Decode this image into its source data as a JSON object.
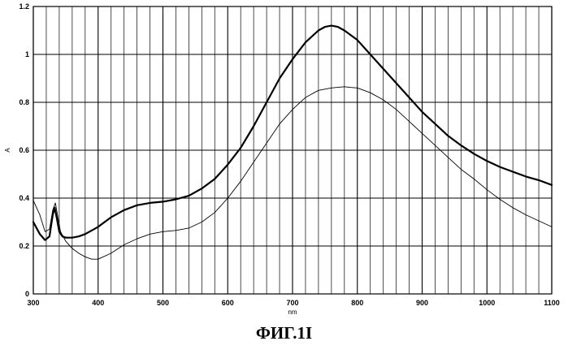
{
  "figure": {
    "caption": "ФИГ.1I"
  },
  "chart_data": {
    "type": "line",
    "xlabel": "nm",
    "ylabel": "A",
    "xlim": [
      300,
      1100
    ],
    "ylim": [
      0,
      1.2
    ],
    "x_ticks": [
      300,
      400,
      500,
      600,
      700,
      800,
      900,
      1000,
      1100
    ],
    "y_ticks": [
      0,
      0.2,
      0.4,
      0.6,
      0.8,
      1,
      1.2
    ],
    "x_tick_labels": [
      "300",
      "400",
      "500",
      "600",
      "700",
      "800",
      "900",
      "1000",
      "1100"
    ],
    "y_tick_labels": [
      "0",
      "0.2",
      "0.4",
      "0.6",
      "0.8",
      "1",
      "1.2"
    ],
    "x_minor_step": 20,
    "grid": true,
    "series": [
      {
        "style": "thick",
        "color": "#000000",
        "x": [
          300,
          310,
          318,
          325,
          330,
          333,
          336,
          340,
          345,
          350,
          360,
          370,
          380,
          400,
          420,
          440,
          460,
          480,
          500,
          520,
          540,
          560,
          580,
          600,
          620,
          640,
          660,
          680,
          700,
          720,
          740,
          750,
          760,
          770,
          780,
          800,
          820,
          840,
          860,
          880,
          900,
          920,
          940,
          960,
          980,
          1000,
          1020,
          1040,
          1060,
          1080,
          1100
        ],
        "y": [
          0.3,
          0.25,
          0.225,
          0.24,
          0.33,
          0.36,
          0.32,
          0.26,
          0.24,
          0.235,
          0.235,
          0.24,
          0.25,
          0.28,
          0.32,
          0.35,
          0.37,
          0.38,
          0.385,
          0.395,
          0.41,
          0.44,
          0.48,
          0.54,
          0.61,
          0.7,
          0.8,
          0.9,
          0.98,
          1.05,
          1.1,
          1.115,
          1.12,
          1.115,
          1.1,
          1.06,
          1.0,
          0.94,
          0.88,
          0.82,
          0.76,
          0.71,
          0.66,
          0.62,
          0.585,
          0.555,
          0.53,
          0.51,
          0.49,
          0.475,
          0.455
        ]
      },
      {
        "style": "thin",
        "color": "#000000",
        "x": [
          300,
          310,
          318,
          325,
          330,
          334,
          338,
          342,
          350,
          360,
          370,
          380,
          390,
          400,
          420,
          440,
          460,
          480,
          500,
          520,
          540,
          560,
          580,
          600,
          620,
          640,
          660,
          680,
          700,
          720,
          740,
          760,
          780,
          790,
          800,
          820,
          840,
          860,
          880,
          900,
          920,
          940,
          960,
          980,
          1000,
          1020,
          1040,
          1060,
          1080,
          1100
        ],
        "y": [
          0.39,
          0.33,
          0.26,
          0.27,
          0.35,
          0.38,
          0.32,
          0.26,
          0.22,
          0.19,
          0.17,
          0.155,
          0.145,
          0.145,
          0.17,
          0.205,
          0.23,
          0.25,
          0.26,
          0.265,
          0.275,
          0.3,
          0.34,
          0.4,
          0.47,
          0.55,
          0.63,
          0.71,
          0.77,
          0.82,
          0.85,
          0.86,
          0.865,
          0.862,
          0.86,
          0.84,
          0.81,
          0.77,
          0.72,
          0.67,
          0.62,
          0.57,
          0.52,
          0.48,
          0.435,
          0.395,
          0.36,
          0.33,
          0.305,
          0.28
        ]
      }
    ]
  }
}
